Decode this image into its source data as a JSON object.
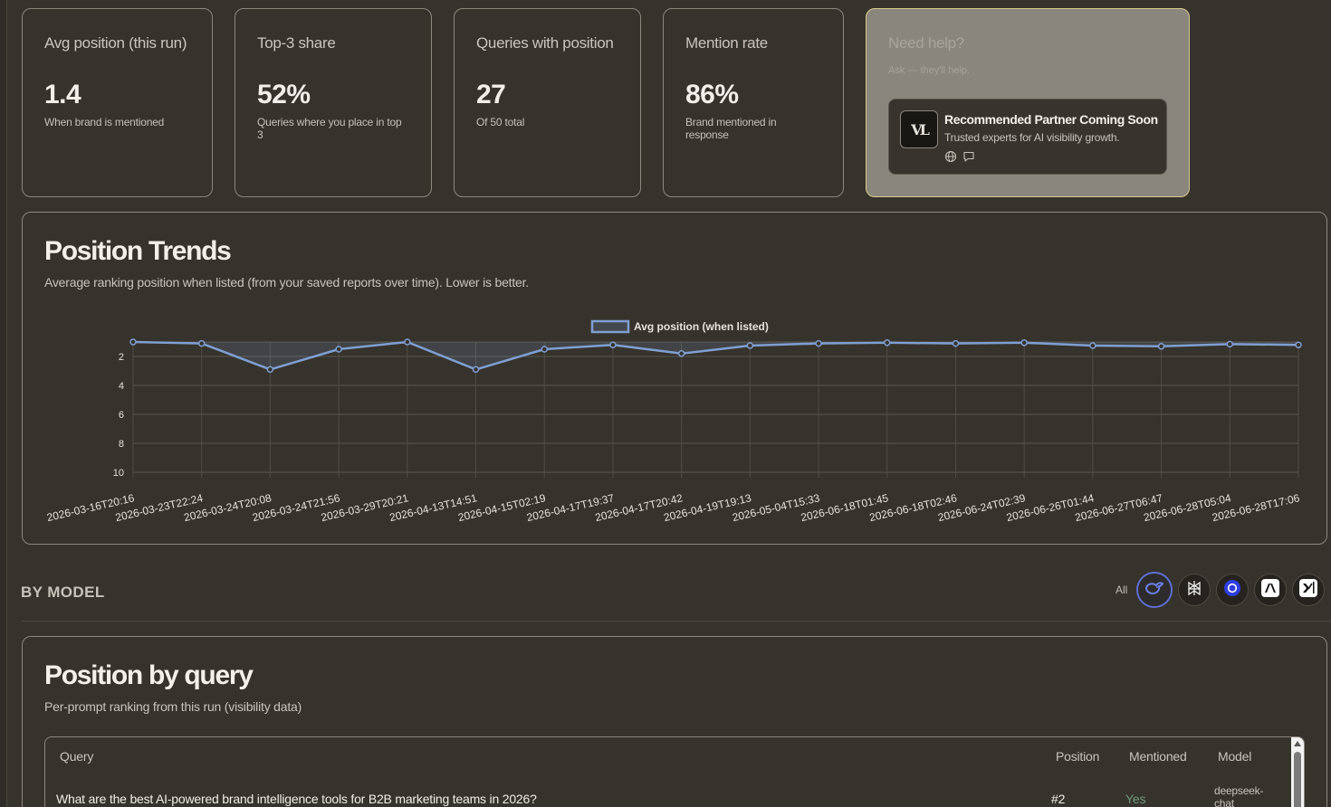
{
  "stats": [
    {
      "title": "Avg position (this run)",
      "value": "1.4",
      "sub": "When brand is mentioned"
    },
    {
      "title": "Top-3 share",
      "value": "52%",
      "sub": "Queries where you place in top 3"
    },
    {
      "title": "Queries with position",
      "value": "27",
      "sub": "Of 50 total"
    },
    {
      "title": "Mention rate",
      "value": "86%",
      "sub": "Brand mentioned in response"
    }
  ],
  "help": {
    "title": "Need help?",
    "sub": "Ask — they'll help.",
    "partner_logo": "VL",
    "partner_title": "Recommended Partner Coming Soon",
    "partner_sub": "Trusted experts for AI visibility growth."
  },
  "trends": {
    "title": "Position Trends",
    "subtitle": "Average ranking position when listed (from your saved reports over time). Lower is better."
  },
  "chart_data": {
    "type": "line",
    "legend": "Avg position (when listed)",
    "legend_position": "top-center",
    "grid": true,
    "y_reversed": true,
    "ylim": [
      1,
      10
    ],
    "y_ticks": [
      2,
      4,
      6,
      8,
      10
    ],
    "x": [
      "2026-03-16T20:16",
      "2026-03-23T22:24",
      "2026-03-24T20:08",
      "2026-03-24T21:56",
      "2026-03-29T20:21",
      "2026-04-13T14:51",
      "2026-04-15T02:19",
      "2026-04-17T19:37",
      "2026-04-17T20:42",
      "2026-04-19T19:13",
      "2026-05-04T15:33",
      "2026-06-18T01:45",
      "2026-06-18T02:46",
      "2026-06-24T02:39",
      "2026-06-26T01:44",
      "2026-06-27T06:47",
      "2026-06-28T05:04",
      "2026-06-28T17:06"
    ],
    "series": [
      {
        "name": "Avg position (when listed)",
        "color": "#7f9fd1",
        "values": [
          1.0,
          1.1,
          2.9,
          1.5,
          1.0,
          2.9,
          1.5,
          1.2,
          1.8,
          1.25,
          1.1,
          1.05,
          1.1,
          1.05,
          1.25,
          1.3,
          1.15,
          1.2
        ]
      }
    ]
  },
  "by_model": {
    "title": "BY MODEL",
    "all_label": "All",
    "models": [
      "deepseek-icon",
      "perplexity-icon",
      "openai-icon",
      "anthropic-icon",
      "xai-icon"
    ]
  },
  "position_by_query": {
    "title": "Position by query",
    "subtitle": "Per-prompt ranking from this run (visibility data)",
    "columns": [
      "Query",
      "Position",
      "Mentioned",
      "Model"
    ],
    "rows": [
      {
        "query": "What are the best AI-powered brand intelligence tools for B2B marketing teams in 2026?",
        "position": "#2",
        "mentioned": "Yes",
        "model": "deepseek-chat"
      }
    ]
  },
  "colors": {
    "accent": "#5f6fd0",
    "line": "#7f9fd1",
    "mentioned_yes": "#6f9c7e"
  }
}
